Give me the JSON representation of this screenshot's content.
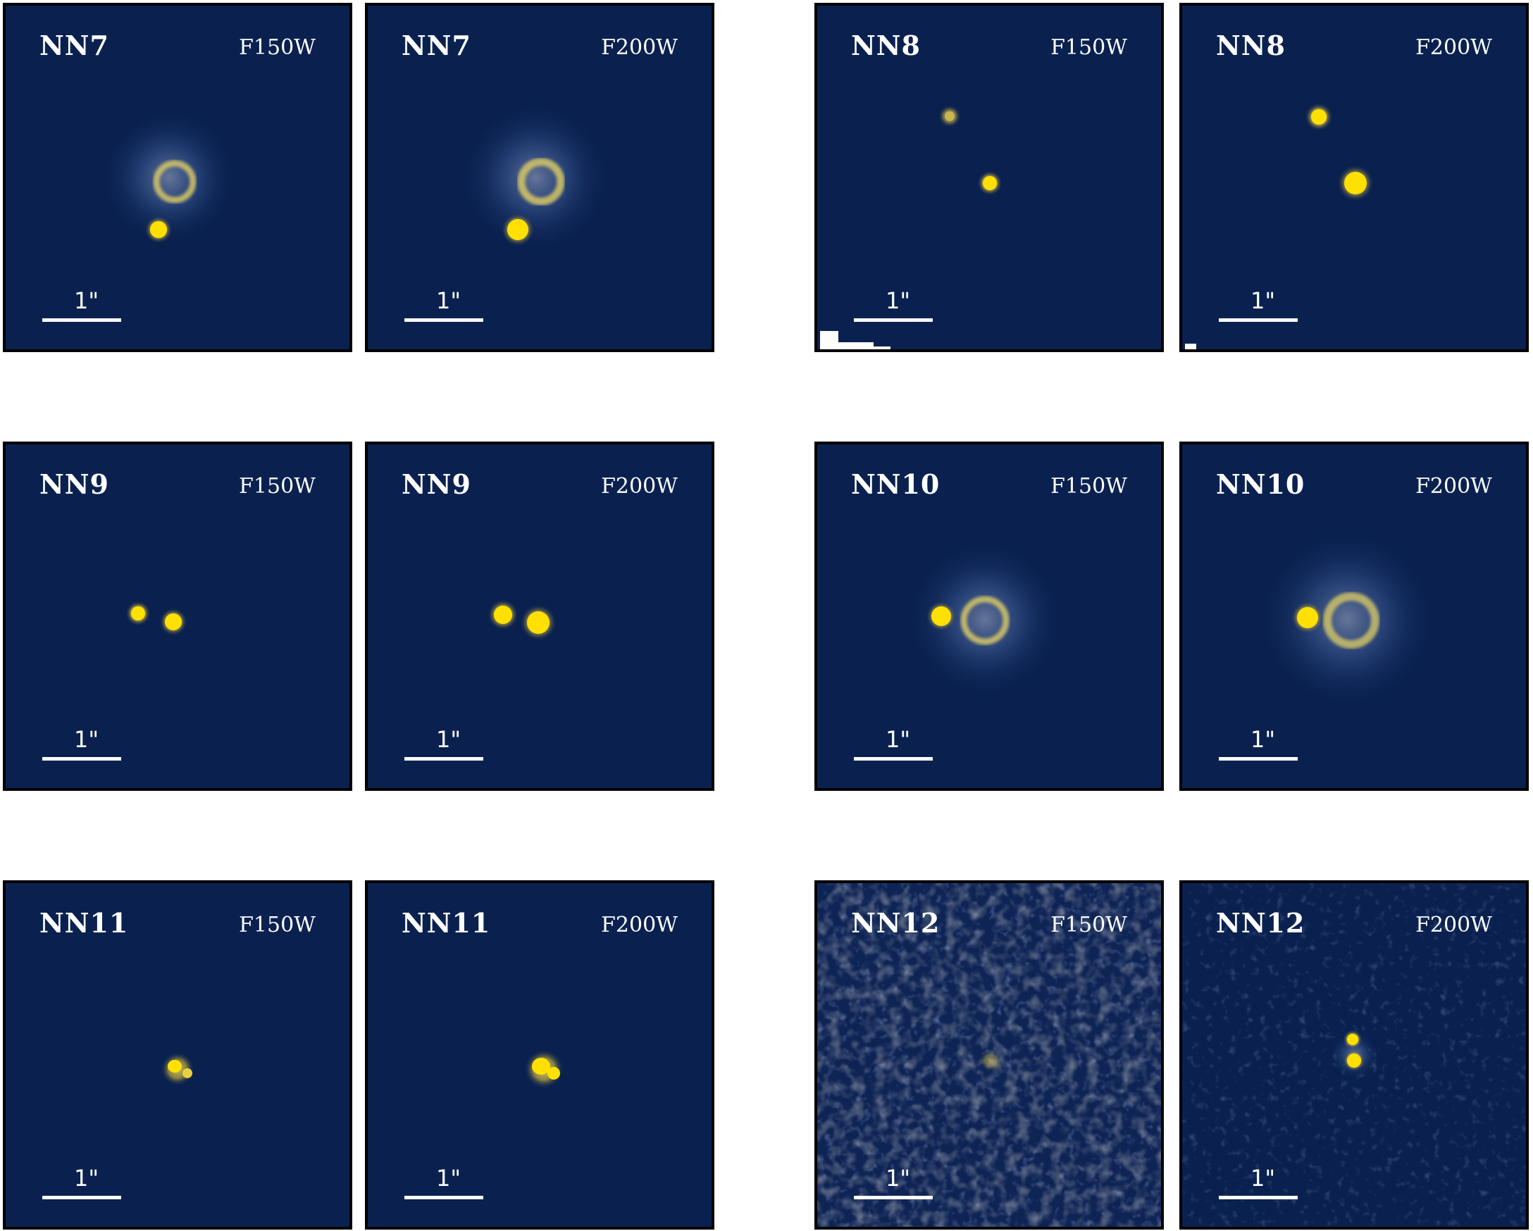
{
  "scale_bar_label": "1\"",
  "colors": {
    "background": "#0a2150",
    "source": "#ffe000",
    "scale_bar": "#ffffff"
  },
  "panels": [
    {
      "name": "NN7",
      "filter": "F150W"
    },
    {
      "name": "NN7",
      "filter": "F200W"
    },
    {
      "name": "NN8",
      "filter": "F150W"
    },
    {
      "name": "NN8",
      "filter": "F200W"
    },
    {
      "name": "NN9",
      "filter": "F150W"
    },
    {
      "name": "NN9",
      "filter": "F200W"
    },
    {
      "name": "NN10",
      "filter": "F150W"
    },
    {
      "name": "NN10",
      "filter": "F200W"
    },
    {
      "name": "NN11",
      "filter": "F150W"
    },
    {
      "name": "NN11",
      "filter": "F200W"
    },
    {
      "name": "NN12",
      "filter": "F150W"
    },
    {
      "name": "NN12",
      "filter": "F200W"
    }
  ]
}
